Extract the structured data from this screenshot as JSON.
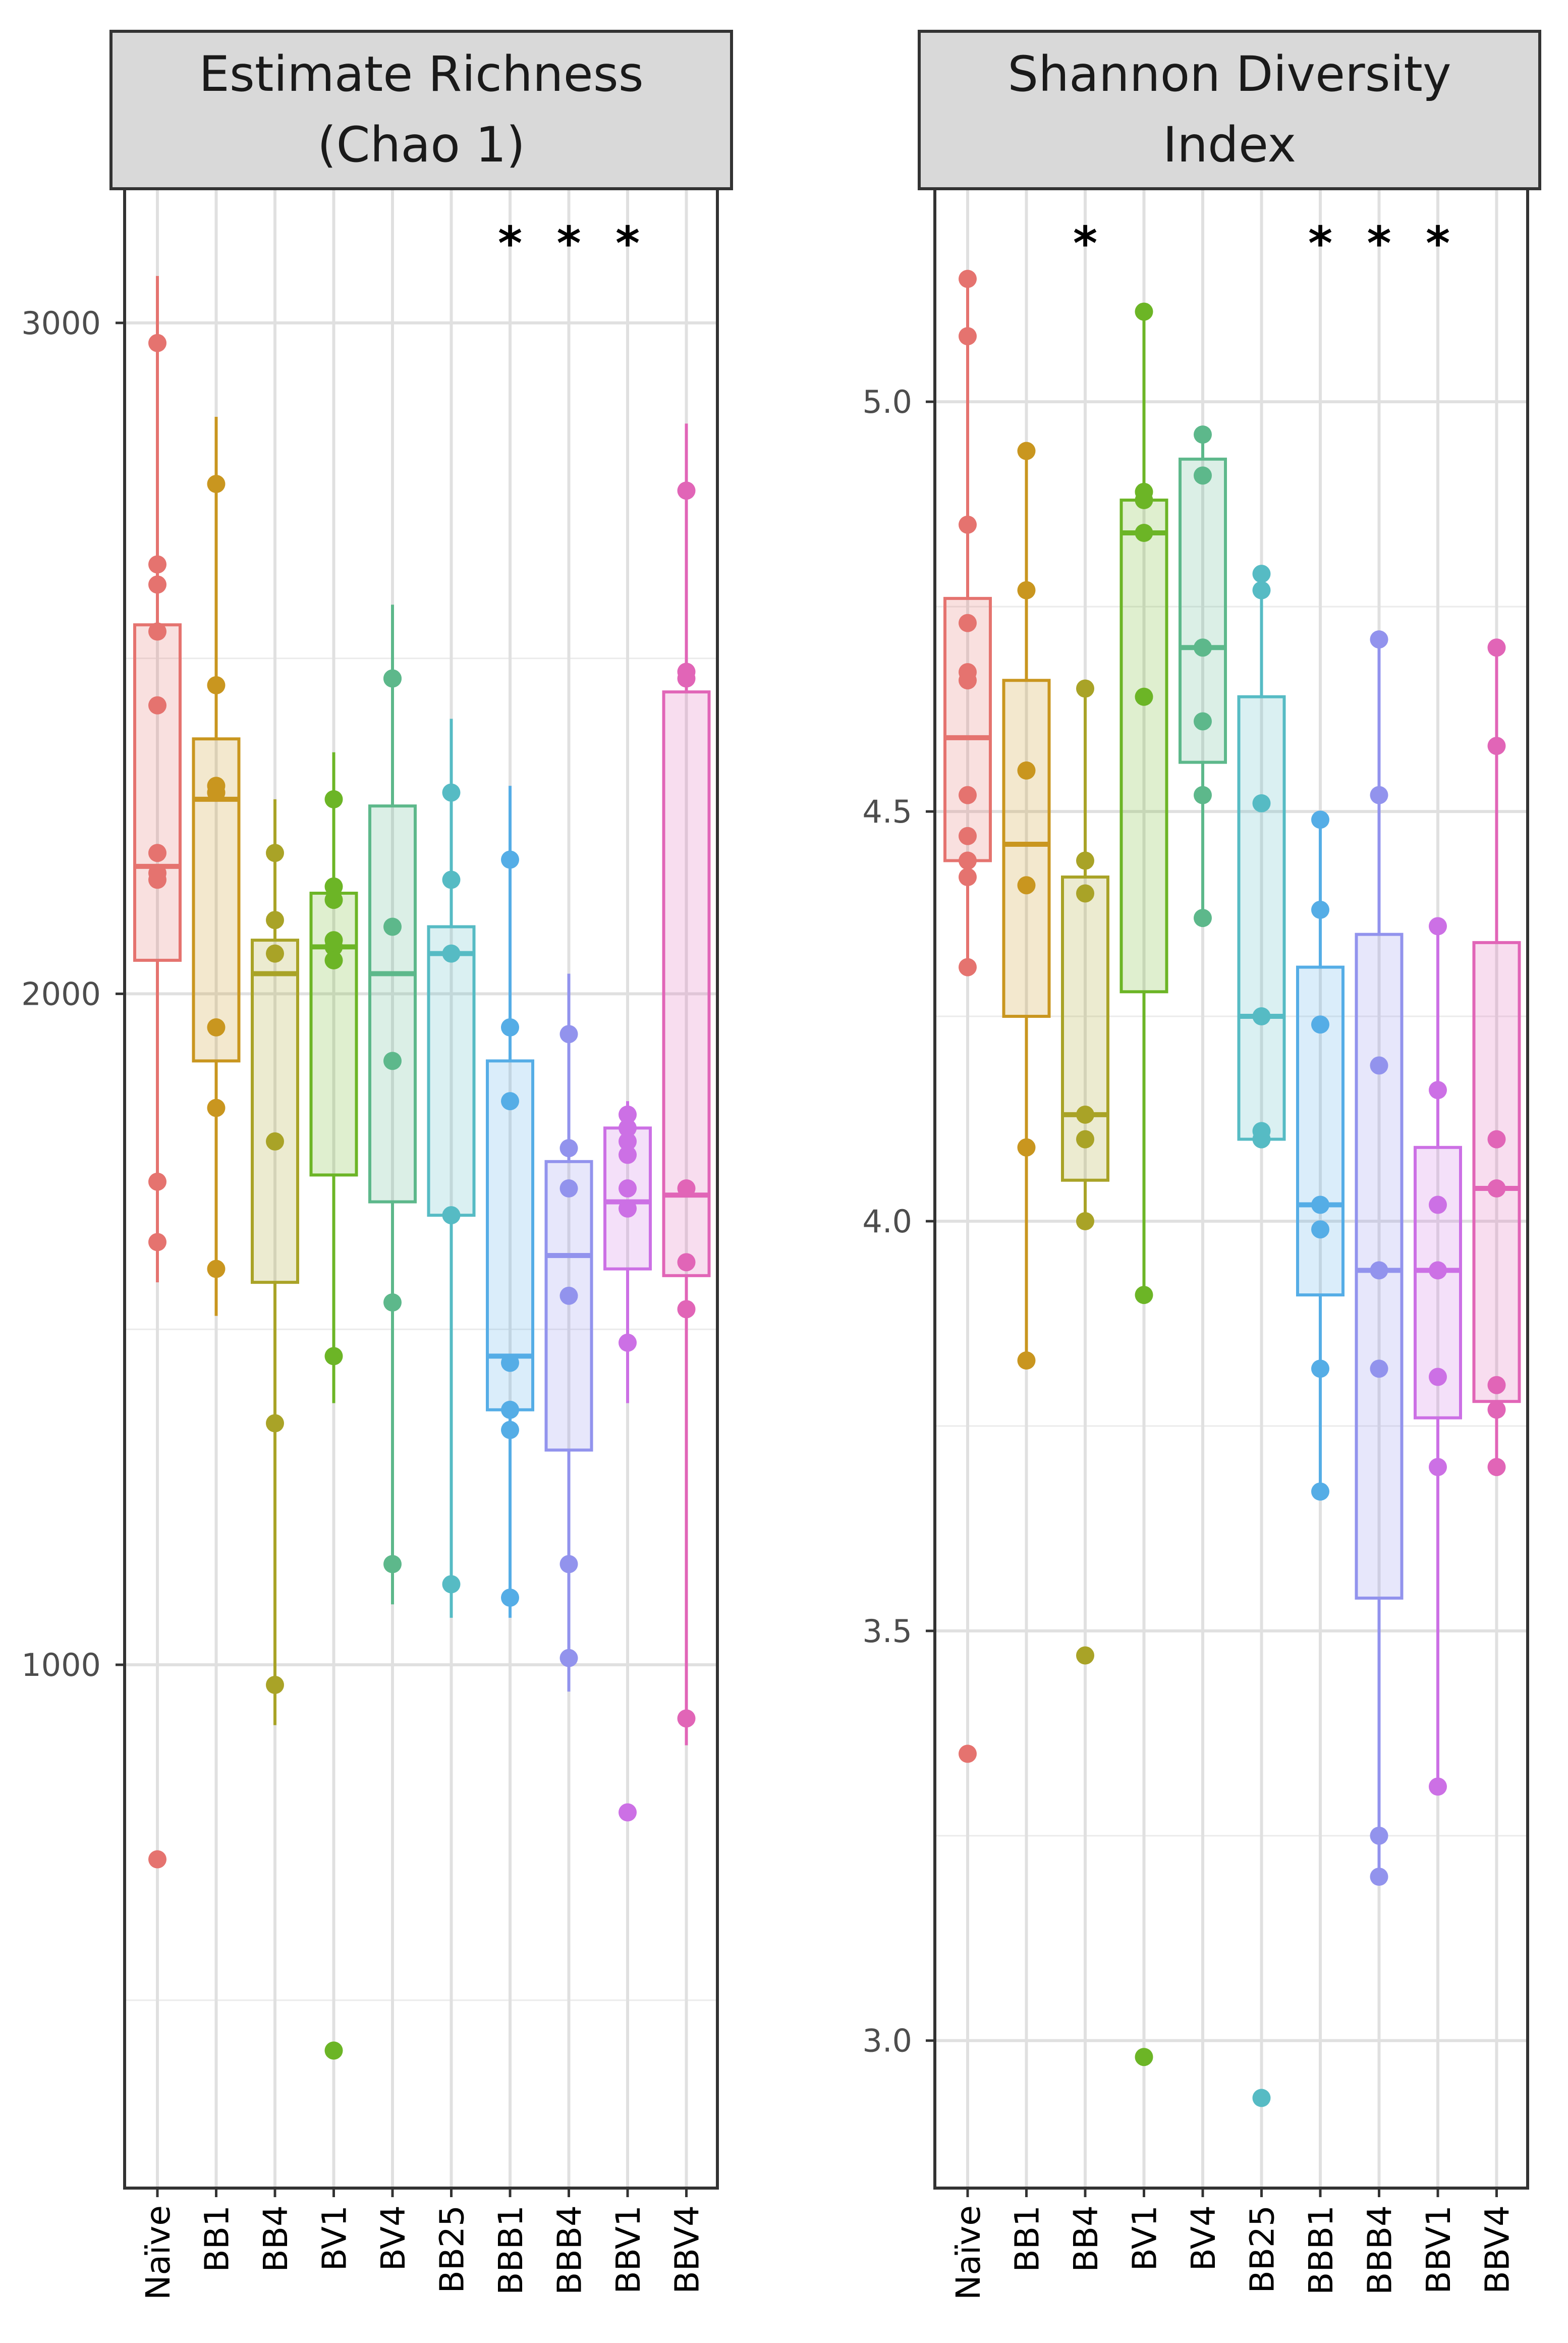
{
  "chart_data": [
    {
      "type": "boxplot",
      "title": "Estimate Richness (Chao 1)",
      "title_lines": [
        "Estimate Richness",
        "(Chao 1)"
      ],
      "xlabel": "",
      "ylabel": "",
      "ylim": [
        220,
        3200
      ],
      "yticks": [
        1000,
        2000,
        3000
      ],
      "yticklabels": [
        "1000",
        "2000",
        "3000"
      ],
      "ygrid_minor": [
        500,
        1500,
        2500
      ],
      "grid": true,
      "categories": [
        "Naïve",
        "BB1",
        "BB4",
        "BV1",
        "BV4",
        "BB25",
        "BBB1",
        "BBB4",
        "BBV1",
        "BBV4"
      ],
      "colors": [
        "#E5736F",
        "#C9961F",
        "#A9A327",
        "#6CB526",
        "#5DB88B",
        "#56BBC4",
        "#55ADE6",
        "#9293ED",
        "#CC70E5",
        "#E165B7"
      ],
      "significance": [
        "",
        "",
        "",
        "",
        "",
        "",
        "*",
        "*",
        "*",
        ""
      ],
      "boxes": [
        {
          "q1": 2050,
          "median": 2190,
          "q3": 2550,
          "whisker_low": 1570,
          "whisker_high": 3070
        },
        {
          "q1": 1900,
          "median": 2290,
          "q3": 2380,
          "whisker_low": 1520,
          "whisker_high": 2860
        },
        {
          "q1": 1570,
          "median": 2030,
          "q3": 2080,
          "whisker_low": 910,
          "whisker_high": 2290
        },
        {
          "q1": 1730,
          "median": 2070,
          "q3": 2150,
          "whisker_low": 1390,
          "whisker_high": 2360
        },
        {
          "q1": 1690,
          "median": 2030,
          "q3": 2280,
          "whisker_low": 1090,
          "whisker_high": 2580
        },
        {
          "q1": 1670,
          "median": 2060,
          "q3": 2100,
          "whisker_low": 1070,
          "whisker_high": 2410
        },
        {
          "q1": 1380,
          "median": 1460,
          "q3": 1900,
          "whisker_low": 1070,
          "whisker_high": 2310
        },
        {
          "q1": 1320,
          "median": 1610,
          "q3": 1750,
          "whisker_low": 960,
          "whisker_high": 2030
        },
        {
          "q1": 1590,
          "median": 1690,
          "q3": 1800,
          "whisker_low": 1390,
          "whisker_high": 1840
        },
        {
          "q1": 1580,
          "median": 1700,
          "q3": 2450,
          "whisker_low": 880,
          "whisker_high": 2850
        }
      ],
      "points": [
        [
          2970,
          2640,
          2610,
          2540,
          2430,
          2210,
          2180,
          2170,
          1720,
          1630,
          710
        ],
        [
          2760,
          2460,
          2310,
          2300,
          2300,
          1950,
          1830,
          1590
        ],
        [
          2210,
          2110,
          2060,
          1780,
          1360,
          970
        ],
        [
          2290,
          2160,
          2140,
          2080,
          2070,
          2050,
          1460,
          425
        ],
        [
          2470,
          2470,
          2100,
          1900,
          1540,
          1150
        ],
        [
          2300,
          2170,
          2060,
          1670,
          1120
        ],
        [
          2200,
          1950,
          1840,
          1450,
          1380,
          1350,
          1100
        ],
        [
          1940,
          1770,
          1710,
          1550,
          1150,
          1010
        ],
        [
          1820,
          1800,
          1780,
          1760,
          1710,
          1680,
          1480,
          780
        ],
        [
          2750,
          2480,
          2470,
          1710,
          1600,
          1530,
          920
        ]
      ]
    },
    {
      "type": "boxplot",
      "title": "Shannon Diversity Index",
      "title_lines": [
        "Shannon Diversity",
        "Index"
      ],
      "xlabel": "",
      "ylabel": "",
      "ylim": [
        2.82,
        5.26
      ],
      "yticks": [
        3.0,
        3.5,
        4.0,
        4.5,
        5.0
      ],
      "yticklabels": [
        "3.0",
        "3.5",
        "4.0",
        "4.5",
        "5.0"
      ],
      "ygrid_minor": [
        3.25,
        3.75,
        4.25,
        4.75
      ],
      "grid": true,
      "categories": [
        "Naïve",
        "BB1",
        "BB4",
        "BV1",
        "BV4",
        "BB25",
        "BBB1",
        "BBB4",
        "BBV1",
        "BBV4"
      ],
      "colors": [
        "#E5736F",
        "#C9961F",
        "#A9A327",
        "#6CB526",
        "#5DB88B",
        "#56BBC4",
        "#55ADE6",
        "#9293ED",
        "#CC70E5",
        "#E165B7"
      ],
      "significance": [
        "",
        "",
        "*",
        "",
        "",
        "",
        "*",
        "*",
        "*",
        ""
      ],
      "boxes": [
        {
          "q1": 4.44,
          "median": 4.59,
          "q3": 4.76,
          "whisker_low": 4.31,
          "whisker_high": 5.15
        },
        {
          "q1": 4.25,
          "median": 4.46,
          "q3": 4.66,
          "whisker_low": 3.83,
          "whisker_high": 4.94
        },
        {
          "q1": 4.05,
          "median": 4.13,
          "q3": 4.42,
          "whisker_low": 4.0,
          "whisker_high": 4.65
        },
        {
          "q1": 4.28,
          "median": 4.84,
          "q3": 4.88,
          "whisker_low": 3.91,
          "whisker_high": 5.11
        },
        {
          "q1": 4.56,
          "median": 4.7,
          "q3": 4.93,
          "whisker_low": 4.37,
          "whisker_high": 4.96
        },
        {
          "q1": 4.1,
          "median": 4.25,
          "q3": 4.64,
          "whisker_low": 4.1,
          "whisker_high": 4.79
        },
        {
          "q1": 3.91,
          "median": 4.02,
          "q3": 4.31,
          "whisker_low": 3.67,
          "whisker_high": 4.49
        },
        {
          "q1": 3.54,
          "median": 3.94,
          "q3": 4.35,
          "whisker_low": 3.2,
          "whisker_high": 4.71
        },
        {
          "q1": 3.76,
          "median": 3.94,
          "q3": 4.09,
          "whisker_low": 3.31,
          "whisker_high": 4.36
        },
        {
          "q1": 3.78,
          "median": 4.04,
          "q3": 4.34,
          "whisker_low": 3.7,
          "whisker_high": 4.7
        }
      ],
      "points": [
        [
          5.15,
          5.08,
          4.85,
          4.73,
          4.67,
          4.66,
          4.52,
          4.47,
          4.44,
          4.42,
          4.31,
          3.35
        ],
        [
          4.94,
          4.77,
          4.55,
          4.41,
          4.09,
          3.83
        ],
        [
          4.65,
          4.44,
          4.4,
          4.13,
          4.1,
          4.0,
          3.47
        ],
        [
          5.11,
          4.89,
          4.88,
          4.84,
          4.64,
          3.91,
          2.98
        ],
        [
          4.96,
          4.91,
          4.7,
          4.61,
          4.52,
          4.37
        ],
        [
          4.79,
          4.77,
          4.51,
          4.25,
          4.11,
          4.1,
          2.93
        ],
        [
          4.49,
          4.38,
          4.24,
          4.02,
          3.99,
          3.82,
          3.67
        ],
        [
          4.71,
          4.52,
          4.19,
          3.94,
          3.82,
          3.25,
          3.2
        ],
        [
          4.36,
          4.16,
          4.02,
          3.94,
          3.81,
          3.7,
          3.31
        ],
        [
          4.7,
          4.58,
          4.1,
          4.04,
          3.8,
          3.77,
          3.7
        ]
      ]
    }
  ]
}
